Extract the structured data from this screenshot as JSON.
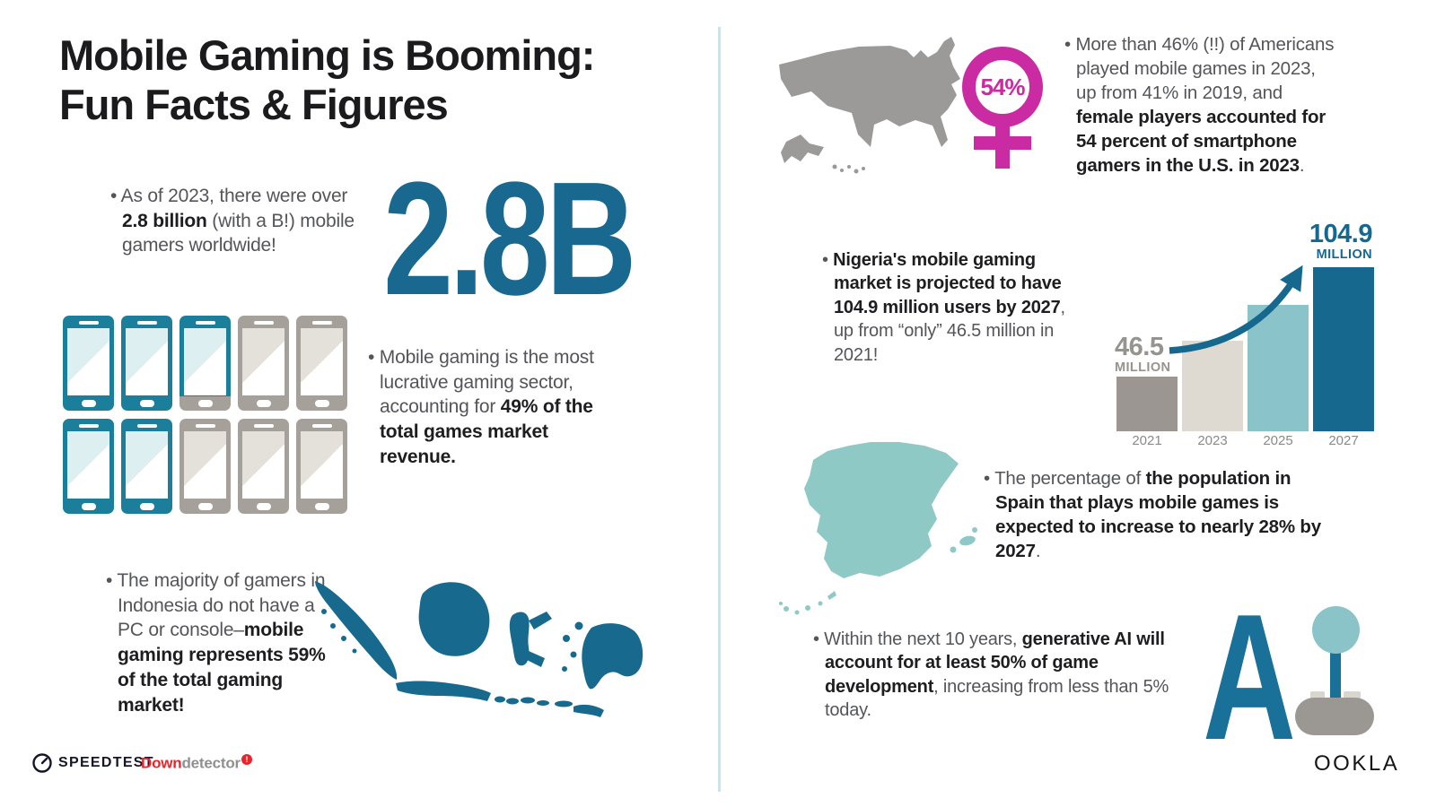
{
  "title": {
    "line1": "Mobile Gaming is Booming:",
    "line2": "Fun Facts & Figures"
  },
  "big_stat": {
    "value": "2.8B",
    "color": "#19688F"
  },
  "female_badge": {
    "value": "54%",
    "color": "#CB2BA2"
  },
  "facts": {
    "gamers": {
      "segments": [
        {
          "t": "As of 2023, there were over ",
          "b": false
        },
        {
          "t": "2.8 billion",
          "b": true
        },
        {
          "t": " (with a B!) mobile gamers worldwide!",
          "b": false
        }
      ]
    },
    "revenue": {
      "segments": [
        {
          "t": "Mobile gaming is the most lucrative gaming sector, accounting for ",
          "b": false
        },
        {
          "t": "49% of the total games market revenue.",
          "b": true
        }
      ]
    },
    "indonesia": {
      "segments": [
        {
          "t": "The majority of gamers in Indonesia do not have a PC or console–",
          "b": false
        },
        {
          "t": "mobile gaming represents 59% of the total gaming market!",
          "b": true
        }
      ]
    },
    "usa": {
      "segments": [
        {
          "t": "More than 46% (!!) of Americans played mobile games in 2023, up from 41% in 2019, and ",
          "b": false
        },
        {
          "t": "female players accounted for 54 percent of smartphone gamers in the U.S. in 2023",
          "b": true
        },
        {
          "t": ".",
          "b": false
        }
      ]
    },
    "nigeria": {
      "segments": [
        {
          "t": "Nigeria's mobile gaming market is projected to have 104.9 million users by 2027",
          "b": true
        },
        {
          "t": ", up from “only” 46.5 million in 2021!",
          "b": false
        }
      ]
    },
    "spain": {
      "segments": [
        {
          "t": "The percentage of ",
          "b": false
        },
        {
          "t": "the population in Spain that plays mobile games is expected to increase to nearly 28% by 2027",
          "b": true
        },
        {
          "t": ".",
          "b": false
        }
      ]
    },
    "ai": {
      "segments": [
        {
          "t": "Within the next 10 years, ",
          "b": false
        },
        {
          "t": "generative AI will account for at least 50% of game development",
          "b": true
        },
        {
          "t": ", increasing from less than 5% today.",
          "b": false
        }
      ]
    }
  },
  "phones": {
    "items": [
      "teal",
      "teal",
      "partial",
      "gray",
      "gray",
      "teal",
      "teal",
      "gray",
      "gray",
      "gray"
    ],
    "teal_color": "#1B7F9B",
    "gray_color": "#A5A19A"
  },
  "chart_data": {
    "type": "bar",
    "title": "Nigeria mobile gaming users",
    "categories": [
      "2021",
      "2023",
      "2025",
      "2027"
    ],
    "values": [
      46.5,
      65,
      85,
      104.9
    ],
    "unit": "million users",
    "bar_colors": [
      "#9B9691",
      "#DEDAD2",
      "#8AC3CA",
      "#16688E"
    ],
    "ylim": [
      0,
      110
    ],
    "grid": false,
    "annotations": {
      "start_value": "46.5",
      "start_unit": "MILLION",
      "end_value": "104.9",
      "end_unit": "MILLION"
    }
  },
  "ai_graphic": {
    "letter": "A"
  },
  "colors": {
    "teal_dark": "#16688E",
    "teal_light": "#8FC9C5",
    "gray": "#9B9A98",
    "magenta": "#CB2BA2",
    "divider": "#CDE3E8"
  },
  "footer": {
    "speedtest": "SPEEDTEST",
    "downdetector_red": "Down",
    "downdetector_gray": "detector",
    "downdetector_badge": "!",
    "ookla": "OOKLA"
  }
}
